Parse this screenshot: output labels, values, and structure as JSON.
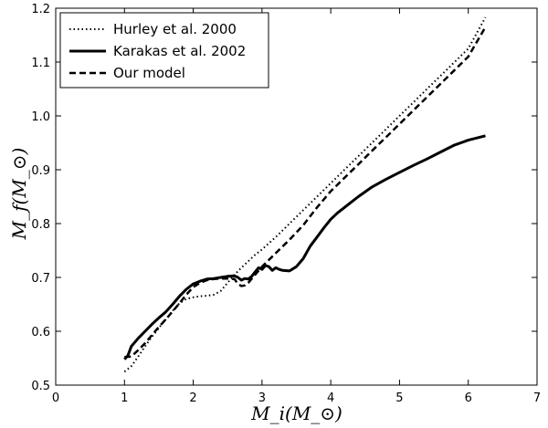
{
  "chart_data": {
    "type": "line",
    "title": "",
    "xlabel": "M_i(M_⊙)",
    "ylabel": "M_f(M_⊙)",
    "xlim": [
      0,
      7
    ],
    "ylim": [
      0.5,
      1.2
    ],
    "xticks": [
      0,
      1,
      2,
      3,
      4,
      5,
      6,
      7
    ],
    "yticks": [
      0.5,
      0.6,
      0.7,
      0.8,
      0.9,
      1.0,
      1.1,
      1.2
    ],
    "xtick_labels": [
      "0",
      "1",
      "2",
      "3",
      "4",
      "5",
      "6",
      "7"
    ],
    "ytick_labels": [
      "0.5",
      "0.6",
      "0.7",
      "0.8",
      "0.9",
      "1.0",
      "1.1",
      "1.2"
    ],
    "legend_position": "top-left",
    "series": [
      {
        "name": "Hurley et al. 2000",
        "style": "dotted",
        "x": [
          1.0,
          1.1,
          1.2,
          1.3,
          1.4,
          1.5,
          1.6,
          1.7,
          1.8,
          1.9,
          2.0,
          2.1,
          2.2,
          2.3,
          2.4,
          2.5,
          2.6,
          2.7,
          2.8,
          2.9,
          3.0,
          3.2,
          3.4,
          3.6,
          3.8,
          4.0,
          4.2,
          4.4,
          4.6,
          4.8,
          5.0,
          5.2,
          5.4,
          5.6,
          5.8,
          6.0,
          6.25
        ],
        "values": [
          0.525,
          0.535,
          0.553,
          0.572,
          0.59,
          0.606,
          0.622,
          0.638,
          0.652,
          0.66,
          0.663,
          0.665,
          0.666,
          0.668,
          0.675,
          0.69,
          0.705,
          0.718,
          0.73,
          0.742,
          0.752,
          0.775,
          0.8,
          0.825,
          0.85,
          0.875,
          0.9,
          0.925,
          0.95,
          0.975,
          1.0,
          1.025,
          1.05,
          1.075,
          1.1,
          1.125,
          1.183
        ]
      },
      {
        "name": "Karakas et al. 2002",
        "style": "solid",
        "x": [
          1.0,
          1.05,
          1.1,
          1.2,
          1.3,
          1.4,
          1.5,
          1.6,
          1.7,
          1.8,
          1.9,
          2.0,
          2.1,
          2.2,
          2.3,
          2.4,
          2.5,
          2.6,
          2.65,
          2.7,
          2.75,
          2.8,
          2.85,
          2.9,
          2.95,
          3.0,
          3.05,
          3.1,
          3.15,
          3.2,
          3.25,
          3.3,
          3.4,
          3.5,
          3.6,
          3.7,
          3.8,
          3.9,
          4.0,
          4.1,
          4.2,
          4.4,
          4.6,
          4.8,
          5.0,
          5.2,
          5.4,
          5.6,
          5.8,
          6.0,
          6.25
        ],
        "values": [
          0.548,
          0.555,
          0.572,
          0.587,
          0.6,
          0.613,
          0.625,
          0.636,
          0.65,
          0.665,
          0.678,
          0.688,
          0.693,
          0.697,
          0.698,
          0.7,
          0.702,
          0.703,
          0.7,
          0.695,
          0.698,
          0.697,
          0.702,
          0.71,
          0.718,
          0.715,
          0.722,
          0.72,
          0.713,
          0.718,
          0.715,
          0.713,
          0.712,
          0.72,
          0.735,
          0.758,
          0.775,
          0.792,
          0.808,
          0.82,
          0.83,
          0.85,
          0.868,
          0.882,
          0.895,
          0.908,
          0.92,
          0.933,
          0.946,
          0.955,
          0.963
        ]
      },
      {
        "name": "Our model",
        "style": "dashed",
        "x": [
          1.0,
          1.1,
          1.2,
          1.3,
          1.4,
          1.5,
          1.6,
          1.7,
          1.8,
          1.9,
          2.0,
          2.1,
          2.2,
          2.3,
          2.4,
          2.5,
          2.6,
          2.65,
          2.7,
          2.75,
          2.8,
          2.9,
          3.0,
          3.2,
          3.4,
          3.6,
          3.8,
          4.0,
          4.2,
          4.4,
          4.6,
          4.8,
          5.0,
          5.2,
          5.4,
          5.6,
          5.8,
          6.0,
          6.25
        ],
        "values": [
          0.552,
          0.553,
          0.565,
          0.578,
          0.593,
          0.608,
          0.622,
          0.637,
          0.652,
          0.668,
          0.682,
          0.69,
          0.695,
          0.697,
          0.698,
          0.698,
          0.697,
          0.688,
          0.684,
          0.685,
          0.69,
          0.705,
          0.72,
          0.745,
          0.77,
          0.797,
          0.83,
          0.86,
          0.885,
          0.91,
          0.935,
          0.96,
          0.985,
          1.01,
          1.035,
          1.06,
          1.085,
          1.11,
          1.165
        ]
      }
    ]
  }
}
